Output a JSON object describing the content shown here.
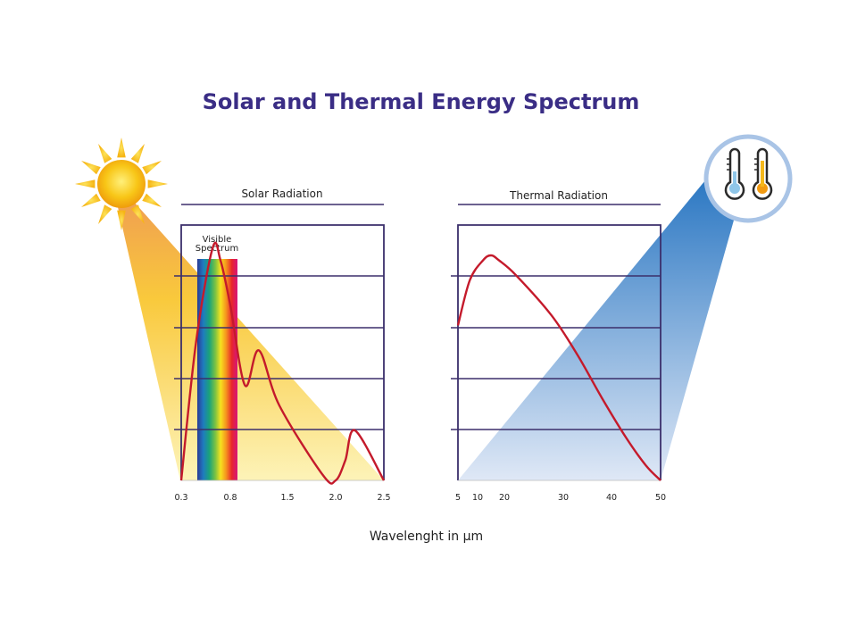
{
  "title": "Solar and Thermal Energy Spectrum",
  "x_axis_label": "Wavelenght in µm",
  "colors": {
    "title": "#3a2d85",
    "frame": "#3b2f6b",
    "curve": "#c41a2b",
    "solar_gradient": [
      "#f7b92e",
      "#fdf2b5"
    ],
    "thermal_gradient": [
      "#2d7cc7",
      "#dbe6f6"
    ],
    "sun": "#f9c20f"
  },
  "icons": {
    "sun": "sun-icon",
    "thermometers": "thermometer-icon"
  },
  "chart_data": [
    {
      "type": "line",
      "title": "Solar Radiation",
      "highlight_band": {
        "label": "Visible Spectrum",
        "from": 0.5,
        "to": 0.87
      },
      "x_ticks": [
        "0.3",
        "0.8",
        "1.5",
        "2.0",
        "2.5"
      ],
      "x_tick_values": [
        0.3,
        0.8,
        1.5,
        2.0,
        2.5
      ],
      "xlim": [
        0.3,
        2.5
      ],
      "grid": true,
      "series": [
        {
          "x": [
            0.3,
            0.45,
            0.62,
            0.7,
            0.8,
            0.98,
            1.15,
            1.4,
            1.87,
            2.0,
            2.1,
            2.2,
            2.5
          ],
          "y": [
            0.0,
            0.55,
            0.93,
            0.88,
            0.7,
            0.38,
            0.52,
            0.3,
            0.02,
            0.0,
            0.08,
            0.2,
            0.0
          ]
        }
      ]
    },
    {
      "type": "line",
      "title": "Thermal Radiation",
      "x_ticks": [
        "5",
        "10",
        "20",
        "30",
        "40",
        "50"
      ],
      "x_tick_values": [
        5,
        10,
        20,
        30,
        40,
        50
      ],
      "xlim": [
        5,
        50
      ],
      "grid": true,
      "series": [
        {
          "x": [
            5,
            8,
            12,
            15,
            18,
            22,
            28,
            33,
            38,
            43,
            47,
            50
          ],
          "y": [
            0.62,
            0.8,
            0.88,
            0.9,
            0.88,
            0.82,
            0.66,
            0.5,
            0.33,
            0.17,
            0.06,
            0.0
          ]
        }
      ]
    }
  ]
}
